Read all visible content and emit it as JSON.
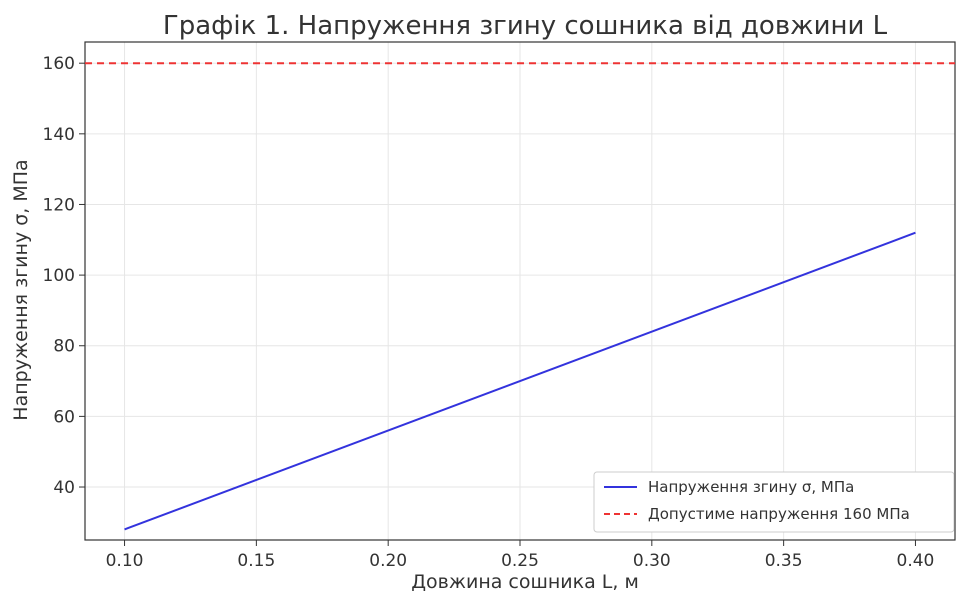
{
  "chart_data": {
    "type": "line",
    "title": "Графік 1. Напруження згину сошника від довжини L",
    "xlabel": "Довжина сошника L, м",
    "ylabel": "Напруження згину σ, МПа",
    "xlim": [
      0.085,
      0.415
    ],
    "ylim": [
      25,
      166
    ],
    "xticks": [
      "0.10",
      "0.15",
      "0.20",
      "0.25",
      "0.30",
      "0.35",
      "0.40"
    ],
    "yticks": [
      "40",
      "60",
      "80",
      "100",
      "120",
      "140",
      "160"
    ],
    "grid": true,
    "legend_position": "bottom-right",
    "series": [
      {
        "name": "Напруження згину σ, МПа",
        "color": "#3333dd",
        "style": "solid",
        "x": [
          0.1,
          0.4
        ],
        "y": [
          28,
          112
        ]
      },
      {
        "name": "Допустиме напруження 160 МПа",
        "color": "#ee3333",
        "style": "dashed",
        "x": [
          0.085,
          0.415
        ],
        "y": [
          160,
          160
        ]
      }
    ]
  }
}
